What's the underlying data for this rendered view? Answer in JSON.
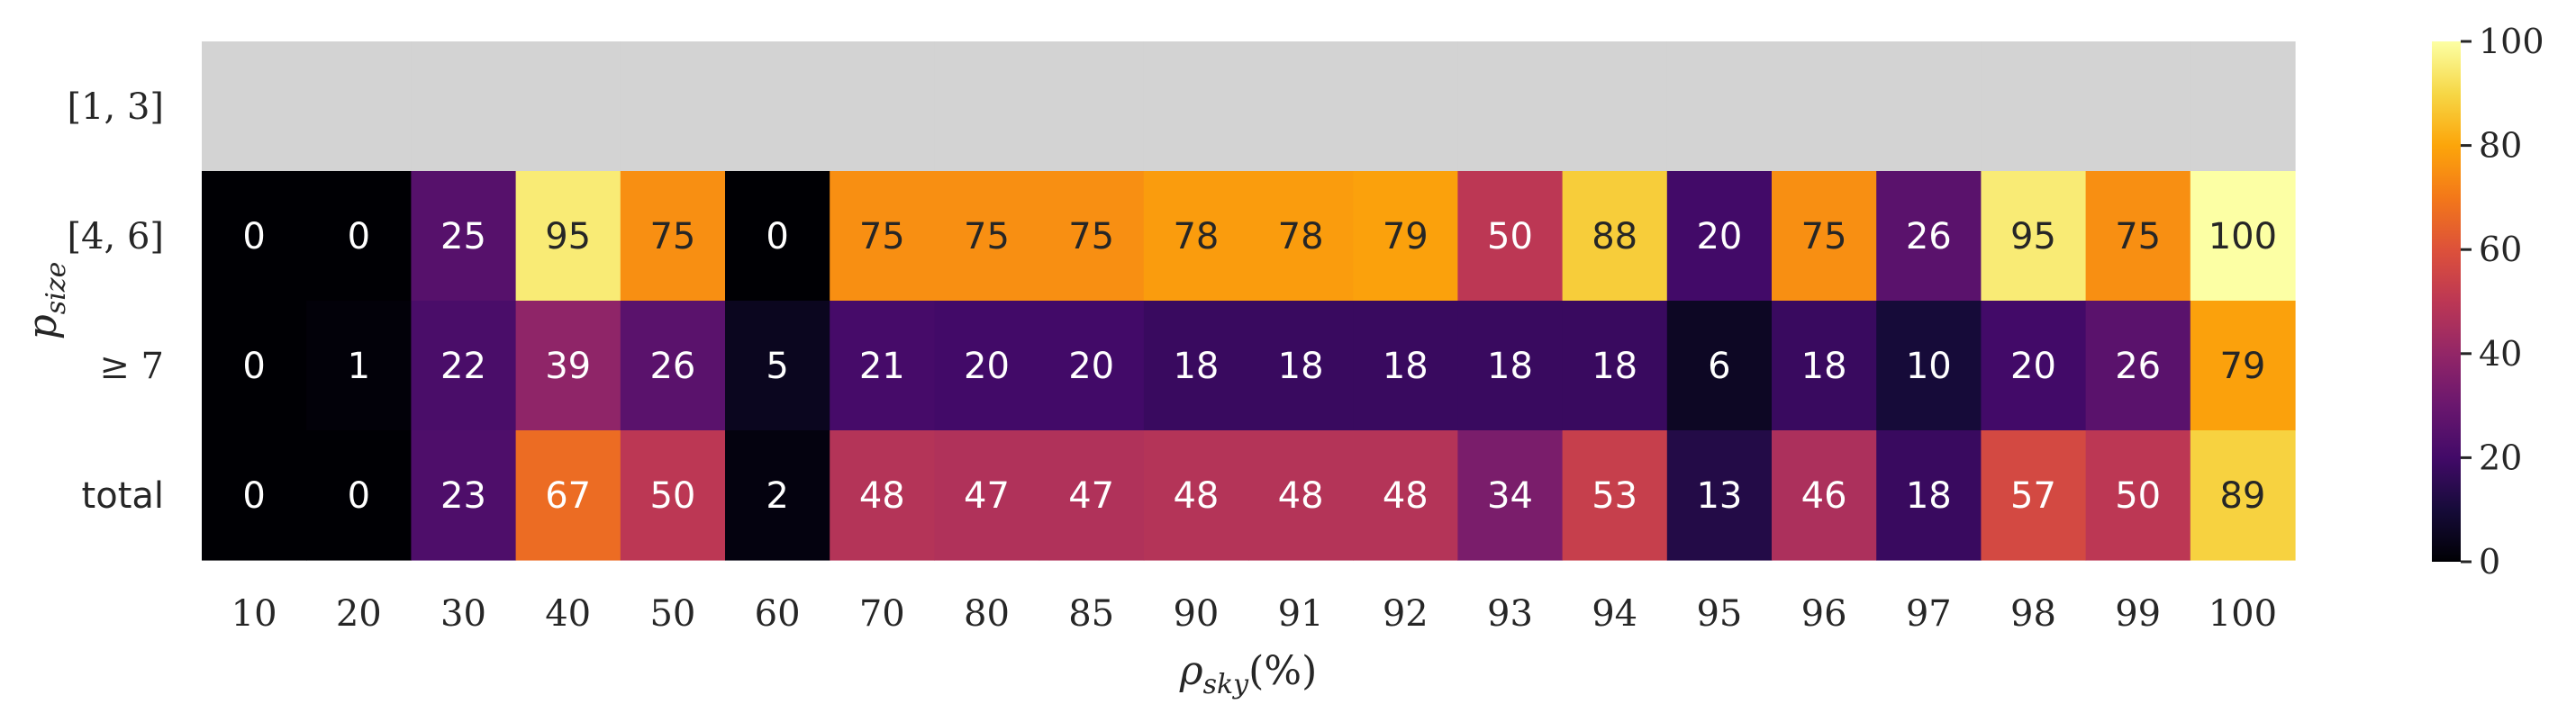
{
  "chart_data": {
    "type": "heatmap",
    "colormap": "inferno",
    "missing_color": "#d3d3d3",
    "x_ticks": [
      "10",
      "20",
      "30",
      "40",
      "50",
      "60",
      "70",
      "80",
      "85",
      "90",
      "91",
      "92",
      "93",
      "94",
      "95",
      "96",
      "97",
      "98",
      "99",
      "100"
    ],
    "y_ticks": [
      "[1, 3]",
      "[4, 6]",
      "≥ 7",
      "total"
    ],
    "xlabel": "ρsky(%)",
    "ylabel": "psize",
    "values": [
      [
        null,
        null,
        null,
        null,
        null,
        null,
        null,
        null,
        null,
        null,
        null,
        null,
        null,
        null,
        null,
        null,
        null,
        null,
        null,
        null
      ],
      [
        0,
        0,
        25,
        95,
        75,
        0,
        75,
        75,
        75,
        78,
        78,
        79,
        50,
        88,
        20,
        75,
        26,
        95,
        75,
        100
      ],
      [
        0,
        1,
        22,
        39,
        26,
        5,
        21,
        20,
        20,
        18,
        18,
        18,
        18,
        18,
        6,
        18,
        10,
        20,
        26,
        79
      ],
      [
        0,
        0,
        23,
        67,
        50,
        2,
        48,
        47,
        47,
        48,
        48,
        48,
        34,
        53,
        13,
        46,
        18,
        57,
        50,
        89
      ]
    ],
    "colorbar": {
      "min": 0,
      "max": 100,
      "ticks": [
        0,
        20,
        40,
        60,
        80,
        100
      ]
    }
  }
}
